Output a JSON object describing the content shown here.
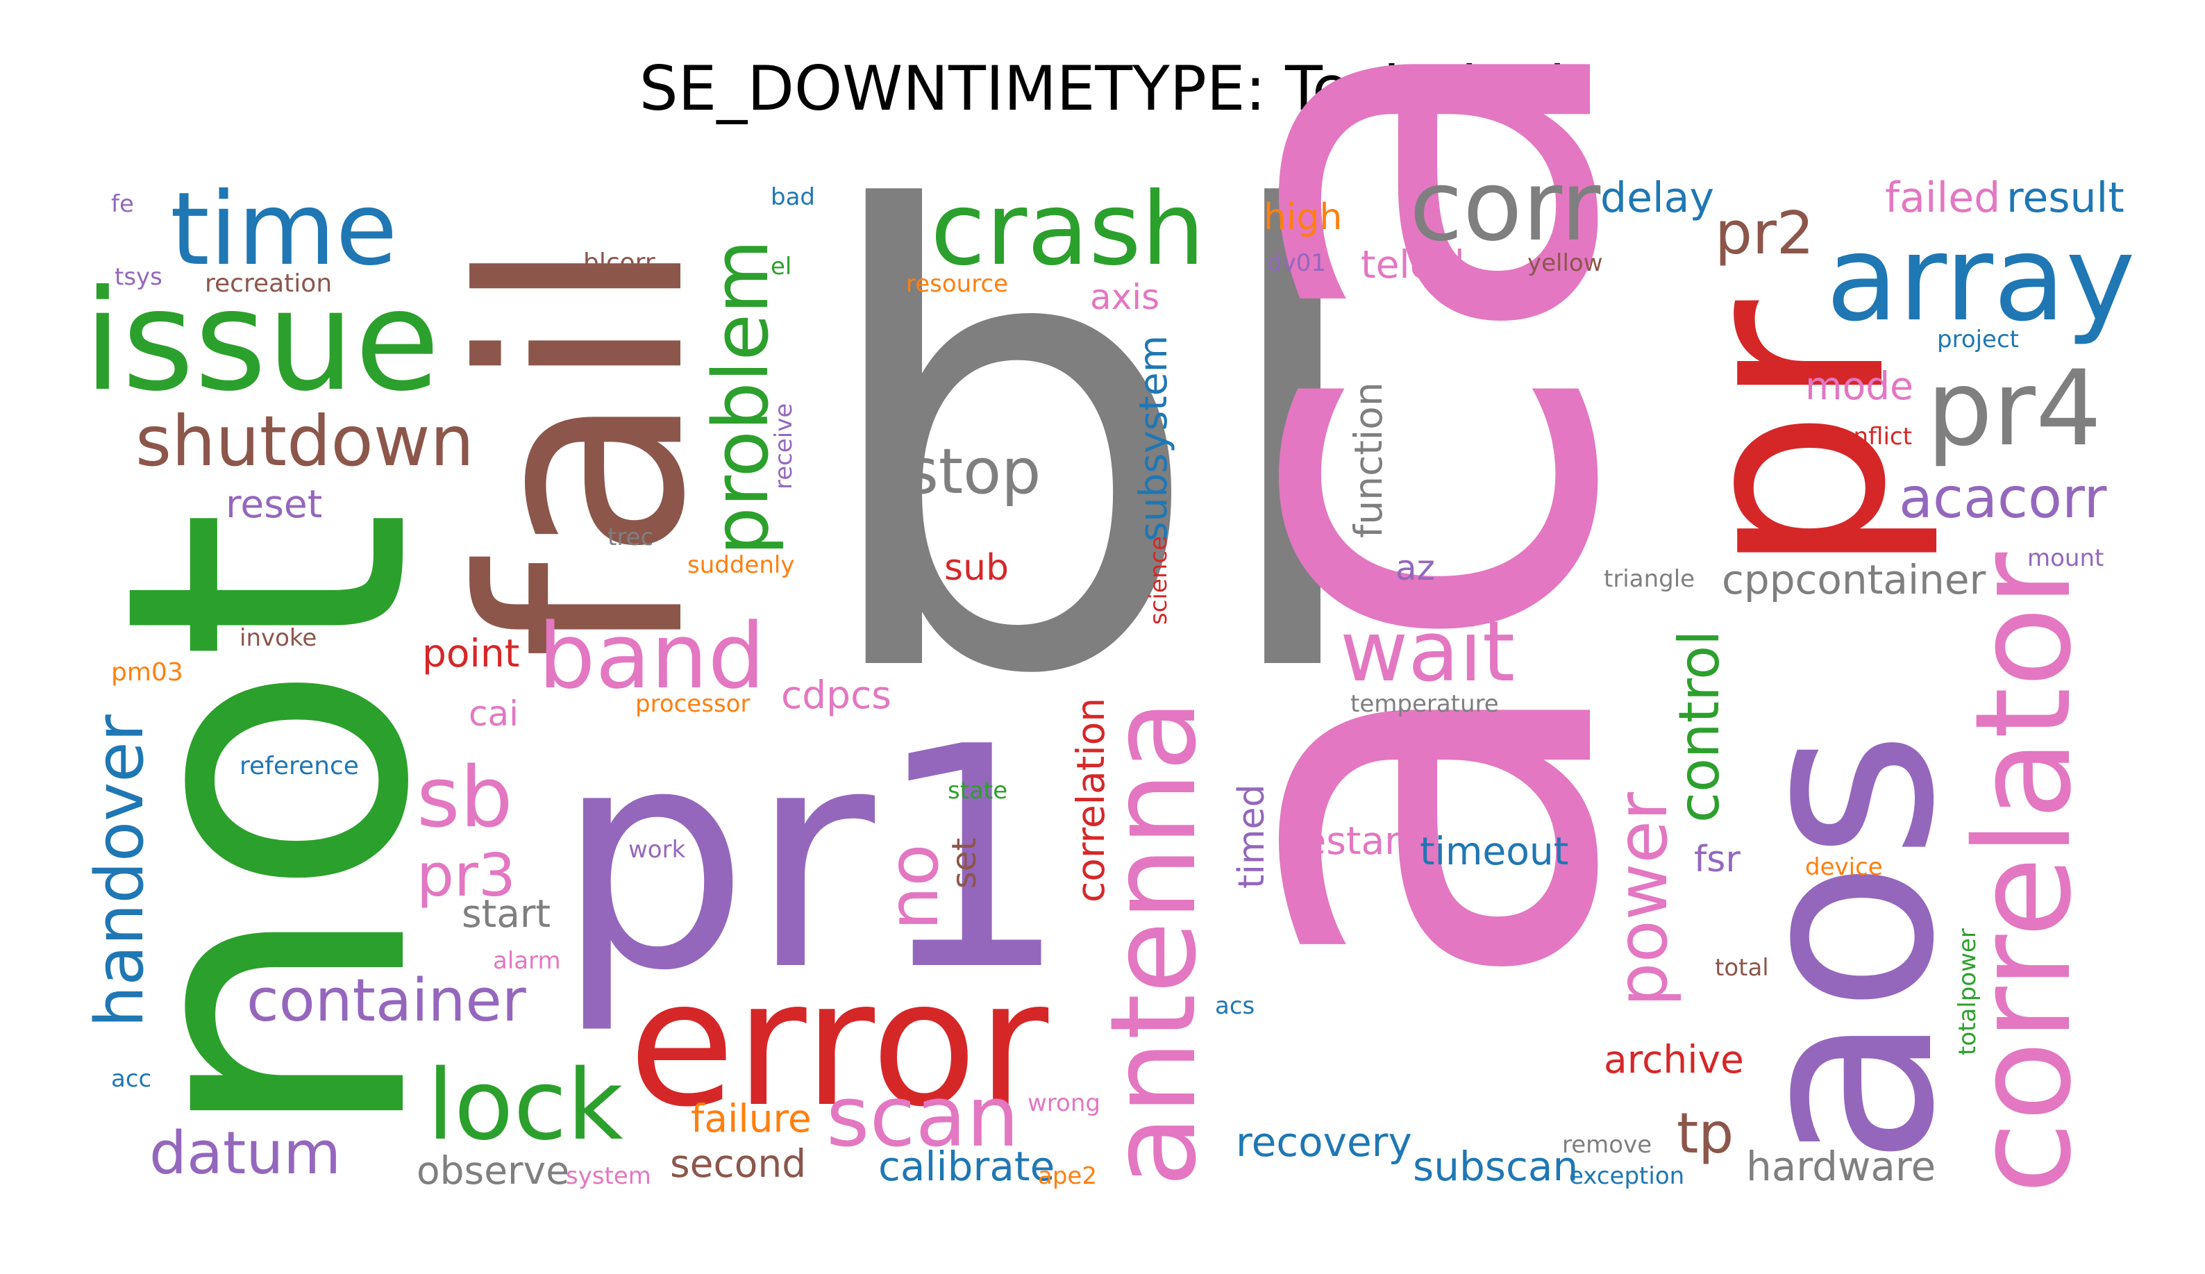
{
  "chart_data": {
    "type": "wordcloud",
    "title": "SE_DOWNTIMETYPE: Technical",
    "colors": {
      "blue": "#1f77b4",
      "orange": "#ff7f0e",
      "green": "#2ca02c",
      "red": "#d62728",
      "purple": "#9467bd",
      "brown": "#8c564b",
      "pink": "#e377c2",
      "gray": "#7f7f7f"
    },
    "words": [
      {
        "text": "bl",
        "color": "gray"
      },
      {
        "text": "aca",
        "color": "pink"
      },
      {
        "text": "not",
        "color": "green"
      },
      {
        "text": "pr1",
        "color": "purple"
      },
      {
        "text": "fail",
        "color": "brown"
      },
      {
        "text": "pr",
        "color": "red"
      },
      {
        "text": "aos",
        "color": "purple"
      },
      {
        "text": "error",
        "color": "red"
      },
      {
        "text": "issue",
        "color": "green"
      },
      {
        "text": "array",
        "color": "blue"
      },
      {
        "text": "correlator",
        "color": "pink"
      },
      {
        "text": "antenna",
        "color": "pink"
      },
      {
        "text": "crash",
        "color": "green"
      },
      {
        "text": "time",
        "color": "blue"
      },
      {
        "text": "corr",
        "color": "gray"
      },
      {
        "text": "pr4",
        "color": "gray"
      },
      {
        "text": "lock",
        "color": "green"
      },
      {
        "text": "band",
        "color": "pink"
      },
      {
        "text": "problem",
        "color": "green"
      },
      {
        "text": "wait",
        "color": "pink"
      },
      {
        "text": "sb",
        "color": "pink"
      },
      {
        "text": "scan",
        "color": "pink"
      },
      {
        "text": "handover",
        "color": "blue"
      },
      {
        "text": "shutdown",
        "color": "brown"
      },
      {
        "text": "no",
        "color": "pink"
      },
      {
        "text": "power",
        "color": "pink"
      },
      {
        "text": "stop",
        "color": "gray"
      },
      {
        "text": "container",
        "color": "purple"
      },
      {
        "text": "datum",
        "color": "purple"
      },
      {
        "text": "pr2",
        "color": "brown"
      },
      {
        "text": "pr3",
        "color": "pink"
      },
      {
        "text": "acacorr",
        "color": "purple"
      },
      {
        "text": "control",
        "color": "green"
      },
      {
        "text": "tp",
        "color": "brown"
      },
      {
        "text": "subsystem",
        "color": "blue"
      },
      {
        "text": "correlation",
        "color": "red"
      },
      {
        "text": "delay",
        "color": "blue"
      },
      {
        "text": "result",
        "color": "blue"
      },
      {
        "text": "failed",
        "color": "pink"
      },
      {
        "text": "cppcontainer",
        "color": "gray"
      },
      {
        "text": "function",
        "color": "gray"
      },
      {
        "text": "timeout",
        "color": "blue"
      },
      {
        "text": "recovery",
        "color": "blue"
      },
      {
        "text": "subscan",
        "color": "blue"
      },
      {
        "text": "calibrate",
        "color": "blue"
      },
      {
        "text": "hardware",
        "color": "gray"
      },
      {
        "text": "observe",
        "color": "gray"
      },
      {
        "text": "restart",
        "color": "pink"
      },
      {
        "text": "cdpcs",
        "color": "pink"
      },
      {
        "text": "telcal",
        "color": "pink"
      },
      {
        "text": "reset",
        "color": "purple"
      },
      {
        "text": "point",
        "color": "red"
      },
      {
        "text": "archive",
        "color": "red"
      },
      {
        "text": "failure",
        "color": "orange"
      },
      {
        "text": "second",
        "color": "brown"
      },
      {
        "text": "timed",
        "color": "purple"
      },
      {
        "text": "start",
        "color": "gray"
      },
      {
        "text": "mode",
        "color": "pink"
      },
      {
        "text": "axis",
        "color": "pink"
      },
      {
        "text": "high",
        "color": "orange"
      },
      {
        "text": "fsr",
        "color": "purple"
      },
      {
        "text": "sub",
        "color": "red"
      },
      {
        "text": "set",
        "color": "brown"
      },
      {
        "text": "cai",
        "color": "pink"
      },
      {
        "text": "az",
        "color": "purple"
      },
      {
        "text": "blcorr",
        "color": "brown"
      },
      {
        "text": "recreation",
        "color": "brown"
      },
      {
        "text": "tsys",
        "color": "purple"
      },
      {
        "text": "fe",
        "color": "purple"
      },
      {
        "text": "bad",
        "color": "blue"
      },
      {
        "text": "el",
        "color": "green"
      },
      {
        "text": "resource",
        "color": "orange"
      },
      {
        "text": "dv01",
        "color": "purple"
      },
      {
        "text": "yellow",
        "color": "brown"
      },
      {
        "text": "project",
        "color": "blue"
      },
      {
        "text": "conflict",
        "color": "red"
      },
      {
        "text": "mount",
        "color": "purple"
      },
      {
        "text": "triangle",
        "color": "gray"
      },
      {
        "text": "temperature",
        "color": "gray"
      },
      {
        "text": "trec",
        "color": "gray"
      },
      {
        "text": "suddenly",
        "color": "orange"
      },
      {
        "text": "receive",
        "color": "purple"
      },
      {
        "text": "science",
        "color": "red"
      },
      {
        "text": "invoke",
        "color": "brown"
      },
      {
        "text": "pm03",
        "color": "orange"
      },
      {
        "text": "processor",
        "color": "orange"
      },
      {
        "text": "reference",
        "color": "blue"
      },
      {
        "text": "work",
        "color": "purple"
      },
      {
        "text": "state",
        "color": "green"
      },
      {
        "text": "alarm",
        "color": "pink"
      },
      {
        "text": "device",
        "color": "orange"
      },
      {
        "text": "total",
        "color": "brown"
      },
      {
        "text": "totalpower",
        "color": "green"
      },
      {
        "text": "acs",
        "color": "blue"
      },
      {
        "text": "acc",
        "color": "blue"
      },
      {
        "text": "system",
        "color": "pink"
      },
      {
        "text": "ape2",
        "color": "orange"
      },
      {
        "text": "wrong",
        "color": "pink"
      },
      {
        "text": "remove",
        "color": "gray"
      },
      {
        "text": "exception",
        "color": "blue"
      }
    ]
  }
}
